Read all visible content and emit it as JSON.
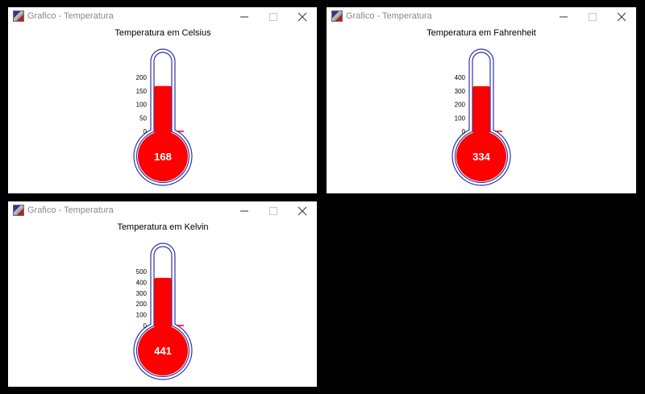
{
  "windows": [
    {
      "title": "Grafico - Temperatura",
      "chart_data": {
        "type": "thermometer",
        "title": "Temperatura em Celsius",
        "value": 168,
        "value_label": "168",
        "ylim": [
          0,
          260
        ],
        "ticks": [
          0,
          50,
          100,
          150,
          200
        ],
        "tick_labels": [
          "0",
          "50",
          "100",
          "150",
          "200"
        ],
        "mercury_color": "#ff0000",
        "outline_color": "#3333aa"
      }
    },
    {
      "title": "Grafico - Temperatura",
      "chart_data": {
        "type": "thermometer",
        "title": "Temperatura em Fahrenheit",
        "value": 334,
        "value_label": "334",
        "ylim": [
          0,
          500
        ],
        "ticks": [
          0,
          100,
          200,
          300,
          400
        ],
        "tick_labels": [
          "0",
          "100",
          "200",
          "300",
          "400"
        ],
        "mercury_color": "#ff0000",
        "outline_color": "#3333aa"
      }
    },
    {
      "title": "Grafico - Temperatura",
      "chart_data": {
        "type": "thermometer",
        "title": "Temperatura em Kelvin",
        "value": 441,
        "value_label": "441",
        "ylim": [
          0,
          630
        ],
        "ticks": [
          0,
          100,
          200,
          300,
          400,
          500
        ],
        "tick_labels": [
          "0",
          "100",
          "200",
          "300",
          "400",
          "500"
        ],
        "mercury_color": "#ff0000",
        "outline_color": "#3333aa"
      }
    }
  ],
  "window_controls": {
    "minimize_icon": "minimize-icon",
    "maximize_icon": "maximize-icon",
    "close_icon": "close-icon"
  }
}
